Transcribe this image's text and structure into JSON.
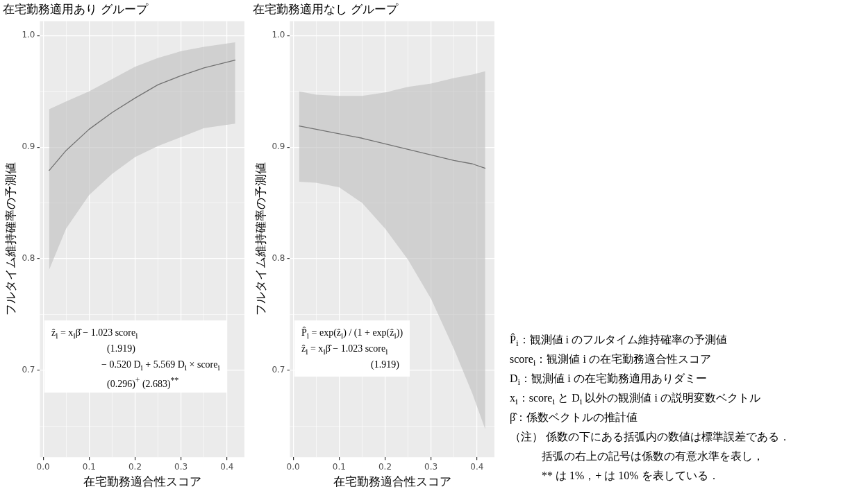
{
  "chart_data": [
    {
      "type": "line",
      "title": "在宅勤務適用あり グループ",
      "xlabel": "在宅勤務適合性スコア",
      "ylabel": "フルタイム維持確率の予測値",
      "grid": true,
      "marker": "none",
      "x": [
        0.013,
        0.05,
        0.1,
        0.15,
        0.2,
        0.25,
        0.3,
        0.35,
        0.418
      ],
      "series": [
        {
          "color": "#000000",
          "values": [
            0.879,
            0.897,
            0.916,
            0.931,
            0.944,
            0.956,
            0.964,
            0.971,
            0.978
          ],
          "upper": [
            0.934,
            0.941,
            0.95,
            0.961,
            0.972,
            0.98,
            0.986,
            0.99,
            0.994
          ],
          "lower": [
            0.79,
            0.827,
            0.857,
            0.876,
            0.891,
            0.901,
            0.909,
            0.917,
            0.921
          ]
        }
      ],
      "xlim": [
        -0.007,
        0.438
      ],
      "ylim": [
        0.622,
        1.013
      ],
      "xticks": [
        {
          "value": 0,
          "label": "0.0"
        },
        {
          "value": 0.05,
          "label": null
        },
        0.1,
        {
          "value": 0.15,
          "label": null
        },
        0.2,
        {
          "value": 0.25,
          "label": null
        },
        0.3,
        {
          "value": 0.35,
          "label": null
        },
        0.4
      ],
      "yticks": [
        {
          "value": 0.65,
          "label": null
        },
        0.7,
        {
          "value": 0.75,
          "label": null
        },
        0.8,
        {
          "value": 0.85,
          "label": null
        },
        0.9,
        {
          "value": 0.95,
          "label": null
        },
        {
          "value": 1,
          "label": "1.0"
        }
      ],
      "annotations": [
        "ẑ$_{i}$ = x$_{i}$β̂  − 1.023 score$_{i}$",
        "(1.919)",
        "− 0.520 D$_{i}$ + 5.569 D$_{i}$ × score$_{i}$",
        "(0.296)$^{+}$      (2.683)$^{**}$"
      ]
    },
    {
      "type": "line",
      "title": "在宅勤務適用なし グループ",
      "xlabel": "在宅勤務適合性スコア",
      "ylabel": "フルタイム維持確率の予測値",
      "grid": true,
      "marker": "none",
      "x": [
        0.013,
        0.05,
        0.1,
        0.15,
        0.2,
        0.25,
        0.3,
        0.35,
        0.39,
        0.418
      ],
      "series": [
        {
          "color": "#000000",
          "values": [
            0.919,
            0.916,
            0.912,
            0.908,
            0.903,
            0.898,
            0.893,
            0.888,
            0.885,
            0.881
          ],
          "upper": [
            0.95,
            0.947,
            0.946,
            0.946,
            0.949,
            0.954,
            0.957,
            0.962,
            0.965,
            0.968
          ],
          "lower": [
            0.869,
            0.868,
            0.864,
            0.85,
            0.827,
            0.799,
            0.764,
            0.719,
            0.679,
            0.647
          ]
        }
      ],
      "xlim": [
        -0.007,
        0.438
      ],
      "ylim": [
        0.622,
        1.013
      ],
      "xticks": [
        {
          "value": 0,
          "label": "0.0"
        },
        {
          "value": 0.05,
          "label": null
        },
        0.1,
        {
          "value": 0.15,
          "label": null
        },
        0.2,
        {
          "value": 0.25,
          "label": null
        },
        0.3,
        {
          "value": 0.35,
          "label": null
        },
        0.4
      ],
      "yticks": [
        {
          "value": 0.65,
          "label": null
        },
        0.7,
        {
          "value": 0.75,
          "label": null
        },
        0.8,
        {
          "value": 0.85,
          "label": null
        },
        0.9,
        {
          "value": 0.95,
          "label": null
        },
        {
          "value": 1,
          "label": "1.0"
        }
      ],
      "annotations": [
        "P̂$_{i}$ = exp(ẑ$_{i}$) / (1 + exp(ẑ$_{i}$))",
        "ẑ$_{i}$ = x$_{i}$β̂  − 1.023 score$_{i}$",
        "(1.919)"
      ]
    },
    {
      "type": "other",
      "annotations": [
        "P̂$_{i}$：観測値 i のフルタイム維持確率の予測値",
        "score$_{i}$：観測値 i の在宅勤務適合性スコア",
        "D$_{i}$：観測値 i の在宅勤務適用ありダミー",
        "x$_{i}$：score$_{i}$ と D$_{i}$ 以外の観測値 i の説明変数ベクトル",
        "β̂：係数ベクトルの推計値",
        "（注） 係数の下にある括弧内の数値は標準誤差である．",
        "括弧の右上の記号は係数の有意水準を表し，",
        "** は 1%，+ は 10% を表している．"
      ]
    }
  ]
}
